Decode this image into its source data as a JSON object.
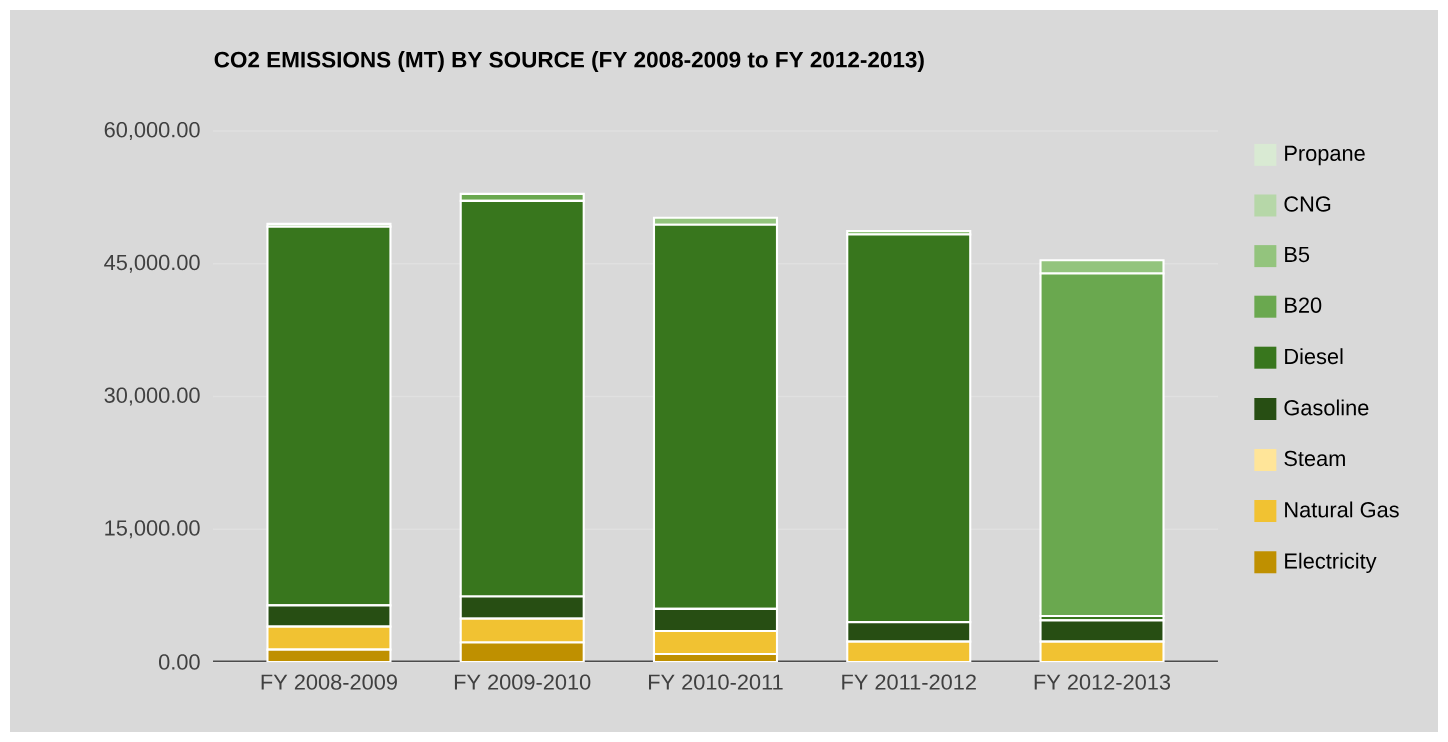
{
  "chart_data": {
    "type": "bar",
    "stacked": true,
    "title": "CO2 EMISSIONS (MT) BY SOURCE (FY 2008-2009 to FY 2012-2013)",
    "categories": [
      "FY 2008-2009",
      "FY 2009-2010",
      "FY 2010-2011",
      "FY 2011-2012",
      "FY 2012-2013"
    ],
    "series": [
      {
        "name": "Electricity",
        "color": "#bf9000",
        "values": [
          1400,
          2200,
          900,
          0,
          0
        ]
      },
      {
        "name": "Natural Gas",
        "color": "#f1c232",
        "values": [
          2600,
          2700,
          2600,
          2300,
          2300
        ]
      },
      {
        "name": "Steam",
        "color": "#ffe599",
        "values": [
          0,
          0,
          0,
          0,
          0
        ]
      },
      {
        "name": "Gasoline",
        "color": "#274e13",
        "values": [
          2400,
          2500,
          2500,
          2200,
          2400
        ]
      },
      {
        "name": "Diesel",
        "color": "#38761d",
        "values": [
          42800,
          44700,
          43400,
          43800,
          500
        ]
      },
      {
        "name": "B20",
        "color": "#6aa84f",
        "values": [
          300,
          800,
          0,
          0,
          38700
        ]
      },
      {
        "name": "B5",
        "color": "#93c47d",
        "values": [
          0,
          0,
          800,
          400,
          1500
        ]
      },
      {
        "name": "CNG",
        "color": "#b6d7a8",
        "values": [
          0,
          0,
          0,
          0,
          0
        ]
      },
      {
        "name": "Propane",
        "color": "#d9ead3",
        "values": [
          0,
          0,
          0,
          0,
          0
        ]
      }
    ],
    "ylim": [
      0,
      60000
    ],
    "yticks": [
      {
        "value": 0,
        "label": "0.00"
      },
      {
        "value": 15000,
        "label": "15,000.00"
      },
      {
        "value": 30000,
        "label": "30,000.00"
      },
      {
        "value": 45000,
        "label": "45,000.00"
      },
      {
        "value": 60000,
        "label": "60,000.00"
      }
    ],
    "grid": "y",
    "legend": "right"
  }
}
